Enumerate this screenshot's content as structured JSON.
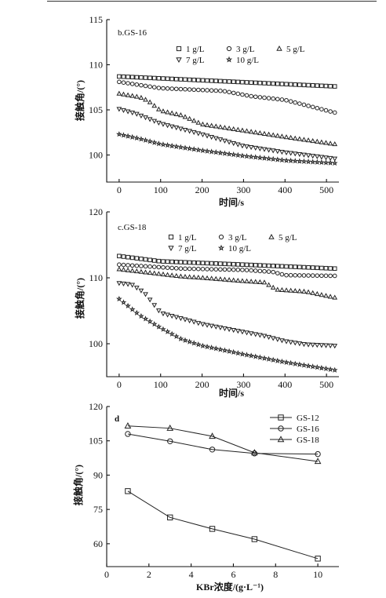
{
  "page": {
    "top_rule": true
  },
  "chart_data": [
    {
      "type": "scatter",
      "panel_label": "b.GS-16",
      "xlabel": "时间/s",
      "ylabel": "接触角/(°)",
      "xlim": [
        -30,
        530
      ],
      "ylim": [
        97,
        115
      ],
      "xticks": [
        0,
        100,
        200,
        300,
        400,
        500
      ],
      "yticks": [
        100,
        105,
        110,
        115
      ],
      "legend": {
        "placement": "top-right",
        "columns": 3
      },
      "series": [
        {
          "name": "1 g/L",
          "marker": "square",
          "x": [
            0,
            520
          ],
          "y": [
            108.7,
            107.6
          ],
          "n": 50
        },
        {
          "name": "3 g/L",
          "marker": "circle",
          "x": [
            0,
            100,
            250,
            320,
            400,
            520
          ],
          "y": [
            108.1,
            107.4,
            107.1,
            106.5,
            106.1,
            104.7
          ],
          "n": 50
        },
        {
          "name": "5 g/L",
          "marker": "triangle",
          "x": [
            0,
            50,
            70,
            100,
            150,
            200,
            300,
            400,
            520
          ],
          "y": [
            106.8,
            106.4,
            106.0,
            104.9,
            104.4,
            103.4,
            102.7,
            102.0,
            101.2
          ],
          "n": 50
        },
        {
          "name": "7 g/L",
          "marker": "triangle-down",
          "x": [
            0,
            40,
            100,
            200,
            300,
            400,
            520
          ],
          "y": [
            105.1,
            104.6,
            103.5,
            102.3,
            101.0,
            100.3,
            99.6
          ],
          "n": 50
        },
        {
          "name": "10 g/L",
          "marker": "star",
          "x": [
            0,
            50,
            100,
            200,
            300,
            400,
            520
          ],
          "y": [
            102.3,
            101.8,
            101.2,
            100.5,
            99.9,
            99.4,
            99.1
          ],
          "n": 50
        }
      ]
    },
    {
      "type": "scatter",
      "panel_label": "c.GS-18",
      "xlabel": "时间/s",
      "ylabel": "接触角/(°)",
      "xlim": [
        -30,
        530
      ],
      "ylim": [
        95,
        120
      ],
      "xticks": [
        0,
        100,
        200,
        300,
        400,
        500
      ],
      "yticks": [
        100,
        110,
        120
      ],
      "legend": {
        "placement": "top-right",
        "columns": 3
      },
      "series": [
        {
          "name": "1 g/L",
          "marker": "square",
          "x": [
            0,
            100,
            300,
            520
          ],
          "y": [
            113.3,
            112.5,
            112.0,
            111.4
          ],
          "n": 50
        },
        {
          "name": "3 g/L",
          "marker": "circle",
          "x": [
            0,
            150,
            300,
            370,
            400,
            520
          ],
          "y": [
            112.0,
            111.4,
            111.2,
            110.9,
            110.4,
            110.3
          ],
          "n": 50
        },
        {
          "name": "5 g/L",
          "marker": "triangle",
          "x": [
            0,
            150,
            200,
            300,
            350,
            380,
            450,
            520
          ],
          "y": [
            111.3,
            110.2,
            110.0,
            109.5,
            109.3,
            108.2,
            107.9,
            107.0
          ],
          "n": 50
        },
        {
          "name": "7 g/L",
          "marker": "triangle-down",
          "x": [
            0,
            30,
            60,
            100,
            200,
            300,
            350,
            400,
            450,
            520
          ],
          "y": [
            109.2,
            109.0,
            107.8,
            104.7,
            103.0,
            101.8,
            101.2,
            100.4,
            99.9,
            99.7
          ],
          "n": 50
        },
        {
          "name": "10 g/L",
          "marker": "star",
          "x": [
            0,
            50,
            100,
            150,
            200,
            300,
            400,
            520
          ],
          "y": [
            106.8,
            104.3,
            102.4,
            100.7,
            99.7,
            98.4,
            97.2,
            96.0
          ],
          "n": 50
        }
      ]
    },
    {
      "type": "line",
      "panel_label": "d",
      "xlabel": "KBr浓度/(g·L⁻¹)",
      "ylabel": "接触角/(°)",
      "xlim": [
        0,
        11
      ],
      "ylim": [
        50,
        120
      ],
      "xticks": [
        0,
        2,
        4,
        6,
        8,
        10
      ],
      "yticks": [
        60,
        75,
        90,
        105,
        120
      ],
      "legend": {
        "placement": "top-right",
        "columns": 1
      },
      "series": [
        {
          "name": "GS-12",
          "marker": "square",
          "x": [
            1,
            3,
            5,
            7,
            10
          ],
          "y": [
            83,
            71.5,
            66.5,
            62,
            53.5
          ]
        },
        {
          "name": "GS-16",
          "marker": "circle",
          "x": [
            1,
            3,
            5,
            7,
            10
          ],
          "y": [
            108,
            104.8,
            101.2,
            99.5,
            99.2
          ]
        },
        {
          "name": "GS-18",
          "marker": "triangle",
          "x": [
            1,
            3,
            5,
            7,
            10
          ],
          "y": [
            111.5,
            110.5,
            107,
            99.8,
            96
          ]
        }
      ]
    }
  ]
}
